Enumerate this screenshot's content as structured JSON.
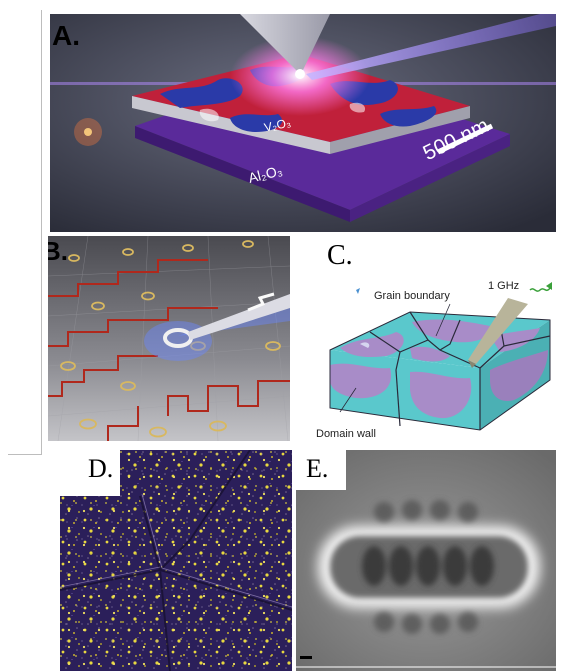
{
  "panels": {
    "a": {
      "label": "A.",
      "layer_top": "V₂O₃",
      "layer_bottom": "Al₂O₃",
      "scale_bar": "500 nm"
    },
    "b": {
      "label": "B."
    },
    "c": {
      "label": "C.",
      "frequency": "1 GHz",
      "grain_boundary": "Grain boundary",
      "domain_wall": "Domain wall"
    },
    "d": {
      "label": "D."
    },
    "e": {
      "label": "E."
    }
  },
  "colors": {
    "substrate": "#5a2a9a",
    "film_red": "#c0203a",
    "film_blue": "#2a3aa8",
    "probe_beam": "#9a7cff",
    "trace_red": "#b0281c",
    "domain_cyan": "#5ac8cc",
    "domain_purple": "#a88cc8",
    "afm_dark": "#2b1f5a",
    "afm_yellow": "#e8d840"
  }
}
